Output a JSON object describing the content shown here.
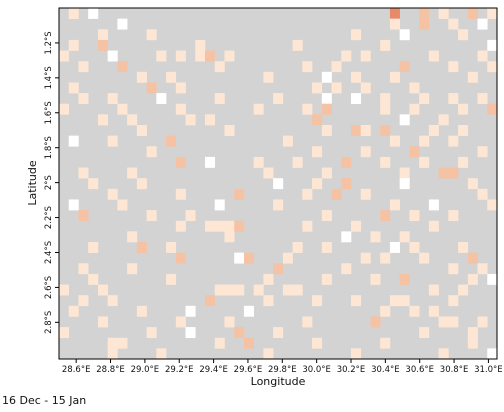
{
  "map": {
    "xlabel": "Longitude",
    "ylabel": "Latitude",
    "period_label": "16 Dec  - 15 Jan",
    "lon_ticks": [
      "28.6°E",
      "28.8°E",
      "29.0°E",
      "29.2°E",
      "29.4°E",
      "29.6°E",
      "29.8°E",
      "30.0°E",
      "30.2°E",
      "30.4°E",
      "30.6°E",
      "30.8°E",
      "31.0°E"
    ],
    "lat_ticks": [
      "1.2°S",
      "1.4°S",
      "1.6°S",
      "1.8°S",
      "2°S",
      "2.2°S",
      "2.4°S",
      "2.6°S",
      "2.8°S"
    ],
    "lon_range": [
      28.5,
      31.05
    ],
    "lat_range": [
      -3.01,
      -1.0
    ],
    "background_color": "#d3d3d3",
    "palette": {
      "white": "#ffffff",
      "light": "#fde7d4",
      "mid": "#f6c2a4",
      "dark": "#e88a6a"
    },
    "grid": {
      "cols": 45,
      "rows": 33,
      "cells": [
        [
          0,
          34,
          "dark"
        ],
        [
          0,
          37,
          "mid"
        ],
        [
          0,
          39,
          "light"
        ],
        [
          0,
          42,
          "mid"
        ],
        [
          0,
          44,
          "light"
        ],
        [
          0,
          1,
          "light"
        ],
        [
          0,
          3,
          "white"
        ],
        [
          1,
          34,
          "light"
        ],
        [
          1,
          37,
          "mid"
        ],
        [
          1,
          40,
          "light"
        ],
        [
          1,
          43,
          "white"
        ],
        [
          1,
          6,
          "white"
        ],
        [
          2,
          4,
          "light"
        ],
        [
          2,
          9,
          "light"
        ],
        [
          2,
          30,
          "light"
        ],
        [
          2,
          35,
          "white"
        ],
        [
          2,
          41,
          "light"
        ],
        [
          3,
          1,
          "light"
        ],
        [
          3,
          4,
          "mid"
        ],
        [
          3,
          14,
          "light"
        ],
        [
          3,
          24,
          "light"
        ],
        [
          3,
          33,
          "light"
        ],
        [
          3,
          44,
          "white"
        ],
        [
          4,
          0,
          "light"
        ],
        [
          4,
          5,
          "white"
        ],
        [
          4,
          10,
          "light"
        ],
        [
          4,
          12,
          "light"
        ],
        [
          4,
          14,
          "light"
        ],
        [
          4,
          15,
          "mid"
        ],
        [
          4,
          17,
          "light"
        ],
        [
          4,
          29,
          "light"
        ],
        [
          4,
          31,
          "light"
        ],
        [
          4,
          38,
          "light"
        ],
        [
          4,
          43,
          "light"
        ],
        [
          5,
          2,
          "light"
        ],
        [
          5,
          6,
          "mid"
        ],
        [
          5,
          16,
          "light"
        ],
        [
          5,
          25,
          "light"
        ],
        [
          5,
          28,
          "light"
        ],
        [
          5,
          35,
          "mid"
        ],
        [
          5,
          40,
          "light"
        ],
        [
          5,
          44,
          "light"
        ],
        [
          6,
          8,
          "light"
        ],
        [
          6,
          11,
          "light"
        ],
        [
          6,
          21,
          "light"
        ],
        [
          6,
          27,
          "white"
        ],
        [
          6,
          30,
          "light"
        ],
        [
          6,
          34,
          "light"
        ],
        [
          6,
          42,
          "light"
        ],
        [
          7,
          1,
          "light"
        ],
        [
          7,
          9,
          "mid"
        ],
        [
          7,
          12,
          "light"
        ],
        [
          7,
          26,
          "light"
        ],
        [
          7,
          28,
          "light"
        ],
        [
          7,
          31,
          "light"
        ],
        [
          7,
          36,
          "light"
        ],
        [
          8,
          2,
          "light"
        ],
        [
          8,
          5,
          "light"
        ],
        [
          8,
          10,
          "white"
        ],
        [
          8,
          16,
          "light"
        ],
        [
          8,
          22,
          "light"
        ],
        [
          8,
          27,
          "white"
        ],
        [
          8,
          30,
          "white"
        ],
        [
          8,
          33,
          "light"
        ],
        [
          8,
          37,
          "light"
        ],
        [
          8,
          40,
          "light"
        ],
        [
          8,
          43,
          "light"
        ],
        [
          9,
          0,
          "light"
        ],
        [
          9,
          6,
          "light"
        ],
        [
          9,
          12,
          "light"
        ],
        [
          9,
          20,
          "light"
        ],
        [
          9,
          25,
          "light"
        ],
        [
          9,
          27,
          "mid"
        ],
        [
          9,
          33,
          "light"
        ],
        [
          9,
          36,
          "light"
        ],
        [
          9,
          41,
          "light"
        ],
        [
          9,
          44,
          "mid"
        ],
        [
          10,
          4,
          "light"
        ],
        [
          10,
          7,
          "light"
        ],
        [
          10,
          13,
          "light"
        ],
        [
          10,
          15,
          "light"
        ],
        [
          10,
          26,
          "mid"
        ],
        [
          10,
          35,
          "white"
        ],
        [
          10,
          39,
          "light"
        ],
        [
          11,
          8,
          "light"
        ],
        [
          11,
          17,
          "light"
        ],
        [
          11,
          27,
          "light"
        ],
        [
          11,
          30,
          "mid"
        ],
        [
          11,
          31,
          "light"
        ],
        [
          11,
          33,
          "mid"
        ],
        [
          11,
          38,
          "light"
        ],
        [
          11,
          41,
          "light"
        ],
        [
          12,
          1,
          "white"
        ],
        [
          12,
          5,
          "light"
        ],
        [
          12,
          11,
          "mid"
        ],
        [
          12,
          23,
          "light"
        ],
        [
          12,
          34,
          "light"
        ],
        [
          12,
          37,
          "light"
        ],
        [
          12,
          40,
          "light"
        ],
        [
          13,
          9,
          "light"
        ],
        [
          13,
          26,
          "light"
        ],
        [
          13,
          31,
          "light"
        ],
        [
          13,
          36,
          "mid"
        ],
        [
          13,
          43,
          "light"
        ],
        [
          14,
          12,
          "mid"
        ],
        [
          14,
          15,
          "white"
        ],
        [
          14,
          20,
          "light"
        ],
        [
          14,
          24,
          "light"
        ],
        [
          14,
          29,
          "mid"
        ],
        [
          14,
          33,
          "light"
        ],
        [
          14,
          37,
          "light"
        ],
        [
          14,
          41,
          "light"
        ],
        [
          15,
          2,
          "light"
        ],
        [
          15,
          7,
          "light"
        ],
        [
          15,
          21,
          "light"
        ],
        [
          15,
          27,
          "light"
        ],
        [
          15,
          35,
          "light"
        ],
        [
          15,
          39,
          "mid"
        ],
        [
          15,
          40,
          "mid"
        ],
        [
          16,
          3,
          "light"
        ],
        [
          16,
          8,
          "light"
        ],
        [
          16,
          22,
          "white"
        ],
        [
          16,
          26,
          "light"
        ],
        [
          16,
          29,
          "mid"
        ],
        [
          16,
          35,
          "white"
        ],
        [
          16,
          42,
          "light"
        ],
        [
          17,
          5,
          "light"
        ],
        [
          17,
          12,
          "light"
        ],
        [
          17,
          18,
          "mid"
        ],
        [
          17,
          25,
          "light"
        ],
        [
          17,
          28,
          "mid"
        ],
        [
          17,
          31,
          "light"
        ],
        [
          17,
          43,
          "light"
        ],
        [
          18,
          1,
          "white"
        ],
        [
          18,
          6,
          "light"
        ],
        [
          18,
          16,
          "white"
        ],
        [
          18,
          22,
          "light"
        ],
        [
          18,
          34,
          "light"
        ],
        [
          18,
          38,
          "white"
        ],
        [
          18,
          44,
          "light"
        ],
        [
          19,
          2,
          "mid"
        ],
        [
          19,
          9,
          "light"
        ],
        [
          19,
          13,
          "light"
        ],
        [
          19,
          27,
          "light"
        ],
        [
          19,
          33,
          "mid"
        ],
        [
          19,
          36,
          "light"
        ],
        [
          19,
          40,
          "light"
        ],
        [
          20,
          12,
          "light"
        ],
        [
          20,
          15,
          "light"
        ],
        [
          20,
          16,
          "light"
        ],
        [
          20,
          17,
          "light"
        ],
        [
          20,
          18,
          "mid"
        ],
        [
          20,
          25,
          "light"
        ],
        [
          20,
          30,
          "light"
        ],
        [
          20,
          38,
          "light"
        ],
        [
          21,
          7,
          "light"
        ],
        [
          21,
          17,
          "light"
        ],
        [
          21,
          29,
          "white"
        ],
        [
          21,
          32,
          "light"
        ],
        [
          21,
          35,
          "light"
        ],
        [
          22,
          3,
          "light"
        ],
        [
          22,
          8,
          "mid"
        ],
        [
          22,
          11,
          "light"
        ],
        [
          22,
          24,
          "light"
        ],
        [
          22,
          27,
          "light"
        ],
        [
          22,
          34,
          "white"
        ],
        [
          22,
          36,
          "light"
        ],
        [
          22,
          41,
          "light"
        ],
        [
          23,
          12,
          "mid"
        ],
        [
          23,
          18,
          "white"
        ],
        [
          23,
          19,
          "mid"
        ],
        [
          23,
          23,
          "light"
        ],
        [
          23,
          31,
          "light"
        ],
        [
          23,
          33,
          "light"
        ],
        [
          23,
          37,
          "light"
        ],
        [
          23,
          42,
          "mid"
        ],
        [
          24,
          2,
          "light"
        ],
        [
          24,
          7,
          "light"
        ],
        [
          24,
          22,
          "mid"
        ],
        [
          24,
          29,
          "light"
        ],
        [
          24,
          40,
          "light"
        ],
        [
          24,
          43,
          "light"
        ],
        [
          25,
          3,
          "light"
        ],
        [
          25,
          11,
          "light"
        ],
        [
          25,
          21,
          "light"
        ],
        [
          25,
          27,
          "light"
        ],
        [
          25,
          32,
          "light"
        ],
        [
          25,
          35,
          "mid"
        ],
        [
          25,
          42,
          "light"
        ],
        [
          25,
          44,
          "white"
        ],
        [
          26,
          0,
          "light"
        ],
        [
          26,
          4,
          "light"
        ],
        [
          26,
          16,
          "light"
        ],
        [
          26,
          17,
          "light"
        ],
        [
          26,
          18,
          "light"
        ],
        [
          26,
          20,
          "light"
        ],
        [
          26,
          23,
          "light"
        ],
        [
          26,
          24,
          "light"
        ],
        [
          26,
          38,
          "light"
        ],
        [
          26,
          41,
          "light"
        ],
        [
          27,
          2,
          "light"
        ],
        [
          27,
          5,
          "light"
        ],
        [
          27,
          15,
          "mid"
        ],
        [
          27,
          21,
          "light"
        ],
        [
          27,
          26,
          "light"
        ],
        [
          27,
          30,
          "light"
        ],
        [
          27,
          34,
          "light"
        ],
        [
          27,
          35,
          "light"
        ],
        [
          27,
          40,
          "light"
        ],
        [
          28,
          1,
          "light"
        ],
        [
          28,
          8,
          "light"
        ],
        [
          28,
          13,
          "white"
        ],
        [
          28,
          19,
          "white"
        ],
        [
          28,
          33,
          "light"
        ],
        [
          28,
          36,
          "light"
        ],
        [
          28,
          38,
          "light"
        ],
        [
          29,
          4,
          "light"
        ],
        [
          29,
          12,
          "light"
        ],
        [
          29,
          17,
          "light"
        ],
        [
          29,
          25,
          "light"
        ],
        [
          29,
          32,
          "mid"
        ],
        [
          29,
          39,
          "light"
        ],
        [
          29,
          40,
          "light"
        ],
        [
          29,
          43,
          "light"
        ],
        [
          30,
          0,
          "light"
        ],
        [
          30,
          9,
          "light"
        ],
        [
          30,
          13,
          "white"
        ],
        [
          30,
          18,
          "mid"
        ],
        [
          30,
          22,
          "light"
        ],
        [
          30,
          37,
          "light"
        ],
        [
          30,
          42,
          "light"
        ],
        [
          31,
          5,
          "light"
        ],
        [
          31,
          6,
          "light"
        ],
        [
          31,
          16,
          "light"
        ],
        [
          31,
          19,
          "mid"
        ],
        [
          31,
          26,
          "light"
        ],
        [
          31,
          33,
          "light"
        ],
        [
          31,
          42,
          "light"
        ],
        [
          32,
          5,
          "light"
        ],
        [
          32,
          10,
          "light"
        ],
        [
          32,
          21,
          "light"
        ],
        [
          32,
          30,
          "light"
        ],
        [
          32,
          39,
          "light"
        ],
        [
          32,
          44,
          "white"
        ]
      ]
    }
  }
}
